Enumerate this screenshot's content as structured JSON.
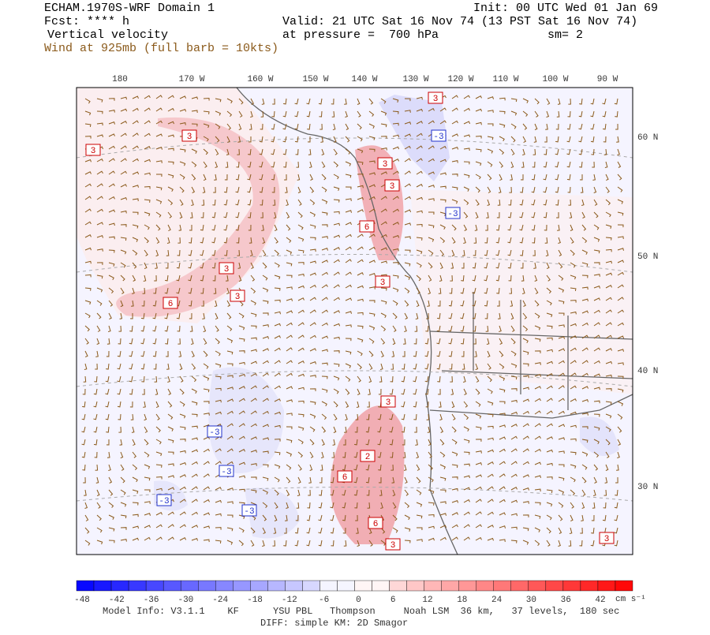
{
  "header": {
    "title": "ECHAM.1970S-WRF Domain 1",
    "init": "Init: 00 UTC Wed 01 Jan 69",
    "fcst": "Fcst: **** h",
    "valid": "Valid: 21 UTC Sat 16 Nov 74 (13 PST Sat 16 Nov 74)",
    "field": "Vertical velocity",
    "pressure": "at pressure =  700 hPa",
    "smooth": "sm= 2",
    "wind": "Wind at 925mb (full barb = 10kts)"
  },
  "lon_labels": [
    "180",
    "170 W",
    "160 W",
    "150 W",
    "140 W",
    "130 W",
    "120 W",
    "110 W",
    "100 W",
    "90 W"
  ],
  "lat_labels": [
    "60 N",
    "50 N",
    "40 N",
    "30 N"
  ],
  "contour_labels": [
    "3",
    "3",
    "3",
    "3",
    "6",
    "3",
    "3",
    "6",
    "3",
    "-3",
    "-3",
    "3",
    "3",
    "2",
    "6",
    "6",
    "3",
    "-3",
    "-3",
    "-3",
    "-3",
    "3"
  ],
  "colorbar": {
    "labels": [
      "-48",
      "-42",
      "-36",
      "-30",
      "-24",
      "-18",
      "-12",
      "-6",
      "0",
      "6",
      "12",
      "18",
      "24",
      "30",
      "36",
      "42"
    ],
    "units": "cm s⁻¹"
  },
  "footer": {
    "line1": "Model Info: V3.1.1    KF      YSU PBL   Thompson     Noah LSM  36 km,   37 levels,  180 sec",
    "line2": "DIFF: simple KM: 2D Smagor"
  }
}
